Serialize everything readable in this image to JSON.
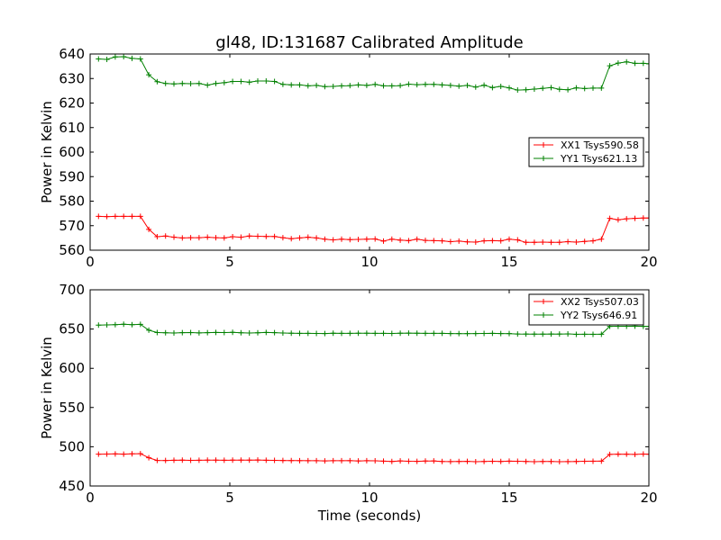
{
  "figure_title": "gl48, ID:131687 Calibrated Amplitude",
  "chart_data": [
    {
      "type": "line",
      "title": "gl48, ID:131687 Calibrated Amplitude",
      "xlabel": "",
      "ylabel": "Power in Kelvin",
      "xlim": [
        0,
        20
      ],
      "ylim": [
        560,
        640
      ],
      "x_ticks": [
        "0",
        "5",
        "10",
        "15",
        "20"
      ],
      "y_ticks": [
        "560",
        "570",
        "580",
        "590",
        "600",
        "610",
        "620",
        "630",
        "640"
      ],
      "legend_position": "center-right",
      "grid": false,
      "x": [
        0.3,
        0.6,
        0.9,
        1.2,
        1.5,
        1.8,
        2.1,
        2.4,
        2.7,
        3.0,
        3.3,
        3.6,
        3.9,
        4.2,
        4.5,
        4.8,
        5.1,
        5.4,
        5.7,
        6.0,
        6.3,
        6.6,
        6.9,
        7.2,
        7.5,
        7.8,
        8.1,
        8.4,
        8.7,
        9.0,
        9.3,
        9.6,
        9.9,
        10.2,
        10.5,
        10.8,
        11.1,
        11.4,
        11.7,
        12.0,
        12.3,
        12.6,
        12.9,
        13.2,
        13.5,
        13.8,
        14.1,
        14.4,
        14.7,
        15.0,
        15.3,
        15.6,
        15.9,
        16.2,
        16.5,
        16.8,
        17.1,
        17.4,
        17.7,
        18.0,
        18.3,
        18.6,
        18.9,
        19.2,
        19.5,
        19.8,
        20.0
      ],
      "series": [
        {
          "name": "XX1 Tsys590.58",
          "color": "#ff0000",
          "values": [
            573.8,
            573.7,
            573.8,
            573.8,
            573.8,
            573.8,
            568.5,
            565.5,
            565.8,
            565.3,
            565.0,
            565.1,
            565.1,
            565.3,
            565.1,
            565.0,
            565.5,
            565.3,
            565.8,
            565.7,
            565.6,
            565.6,
            565.1,
            564.7,
            565.0,
            565.3,
            565.0,
            564.5,
            564.2,
            564.5,
            564.3,
            564.4,
            564.5,
            564.6,
            563.7,
            564.5,
            564.1,
            563.9,
            564.5,
            564.0,
            563.9,
            563.8,
            563.5,
            563.7,
            563.4,
            563.3,
            563.8,
            563.9,
            563.8,
            564.5,
            564.2,
            563.2,
            563.2,
            563.3,
            563.2,
            563.2,
            563.5,
            563.3,
            563.6,
            563.8,
            564.5,
            573.0,
            572.4,
            572.8,
            573.0,
            573.1,
            573.1
          ]
        },
        {
          "name": "YY1 Tsys621.13",
          "color": "#008000",
          "values": [
            638.0,
            637.8,
            638.8,
            638.9,
            638.2,
            638.0,
            631.5,
            628.7,
            628.0,
            627.8,
            628.0,
            627.9,
            628.0,
            627.3,
            628.0,
            628.3,
            628.8,
            628.8,
            628.5,
            629.0,
            629.0,
            628.8,
            627.6,
            627.4,
            627.4,
            627.0,
            627.2,
            626.7,
            626.8,
            627.0,
            627.1,
            627.4,
            627.2,
            627.6,
            627.0,
            627.0,
            627.1,
            627.7,
            627.5,
            627.6,
            627.6,
            627.4,
            627.2,
            626.9,
            627.2,
            626.5,
            627.3,
            626.3,
            626.8,
            626.2,
            625.3,
            625.4,
            625.7,
            626.0,
            626.3,
            625.6,
            625.4,
            626.2,
            625.9,
            626.1,
            626.1,
            635.2,
            636.3,
            636.8,
            636.2,
            636.2,
            636.0
          ]
        }
      ]
    },
    {
      "type": "line",
      "title": "",
      "xlabel": "Time (seconds)",
      "ylabel": "Power in Kelvin",
      "xlim": [
        0,
        20
      ],
      "ylim": [
        450,
        700
      ],
      "x_ticks": [
        "0",
        "5",
        "10",
        "15",
        "20"
      ],
      "y_ticks": [
        "450",
        "500",
        "550",
        "600",
        "650",
        "700"
      ],
      "legend_position": "top-right",
      "grid": false,
      "x": [
        0.3,
        0.6,
        0.9,
        1.2,
        1.5,
        1.8,
        2.1,
        2.4,
        2.7,
        3.0,
        3.3,
        3.6,
        3.9,
        4.2,
        4.5,
        4.8,
        5.1,
        5.4,
        5.7,
        6.0,
        6.3,
        6.6,
        6.9,
        7.2,
        7.5,
        7.8,
        8.1,
        8.4,
        8.7,
        9.0,
        9.3,
        9.6,
        9.9,
        10.2,
        10.5,
        10.8,
        11.1,
        11.4,
        11.7,
        12.0,
        12.3,
        12.6,
        12.9,
        13.2,
        13.5,
        13.8,
        14.1,
        14.4,
        14.7,
        15.0,
        15.3,
        15.6,
        15.9,
        16.2,
        16.5,
        16.8,
        17.1,
        17.4,
        17.7,
        18.0,
        18.3,
        18.6,
        18.9,
        19.2,
        19.5,
        19.8,
        20.0
      ],
      "series": [
        {
          "name": "XX2 Tsys507.03",
          "color": "#ff0000",
          "values": [
            490.5,
            490.7,
            490.9,
            490.6,
            491.0,
            491.2,
            486.0,
            482.6,
            482.5,
            482.8,
            482.9,
            482.7,
            482.8,
            482.9,
            483.0,
            482.8,
            482.9,
            482.9,
            483.0,
            483.1,
            482.8,
            482.7,
            482.5,
            482.4,
            482.3,
            482.2,
            482.2,
            482.0,
            482.2,
            482.2,
            482.3,
            481.9,
            482.2,
            482.1,
            481.7,
            481.3,
            482.0,
            481.5,
            481.4,
            481.8,
            481.9,
            481.3,
            481.1,
            481.3,
            481.4,
            481.0,
            481.2,
            481.5,
            481.3,
            481.7,
            481.5,
            481.2,
            481.0,
            481.2,
            481.3,
            481.0,
            481.1,
            481.2,
            481.5,
            481.6,
            481.7,
            490.3,
            490.6,
            490.5,
            490.3,
            490.7,
            490.5
          ]
        },
        {
          "name": "YY2 Tsys646.91",
          "color": "#008000",
          "values": [
            655.0,
            655.3,
            655.6,
            656.1,
            655.5,
            656.0,
            648.5,
            645.5,
            645.2,
            645.0,
            645.4,
            645.5,
            645.1,
            645.4,
            645.6,
            645.5,
            645.8,
            645.3,
            645.0,
            645.3,
            645.6,
            645.4,
            645.0,
            644.6,
            644.5,
            644.5,
            644.4,
            644.3,
            644.7,
            644.5,
            644.5,
            644.6,
            644.7,
            644.5,
            644.5,
            644.4,
            644.6,
            644.8,
            644.6,
            644.5,
            644.5,
            644.5,
            644.3,
            644.2,
            644.2,
            644.3,
            644.4,
            644.5,
            644.3,
            644.2,
            643.7,
            643.6,
            643.5,
            643.5,
            643.7,
            643.6,
            643.8,
            643.3,
            643.4,
            643.3,
            643.4,
            653.4,
            653.5,
            653.6,
            653.7,
            653.4,
            653.3
          ]
        }
      ]
    }
  ]
}
